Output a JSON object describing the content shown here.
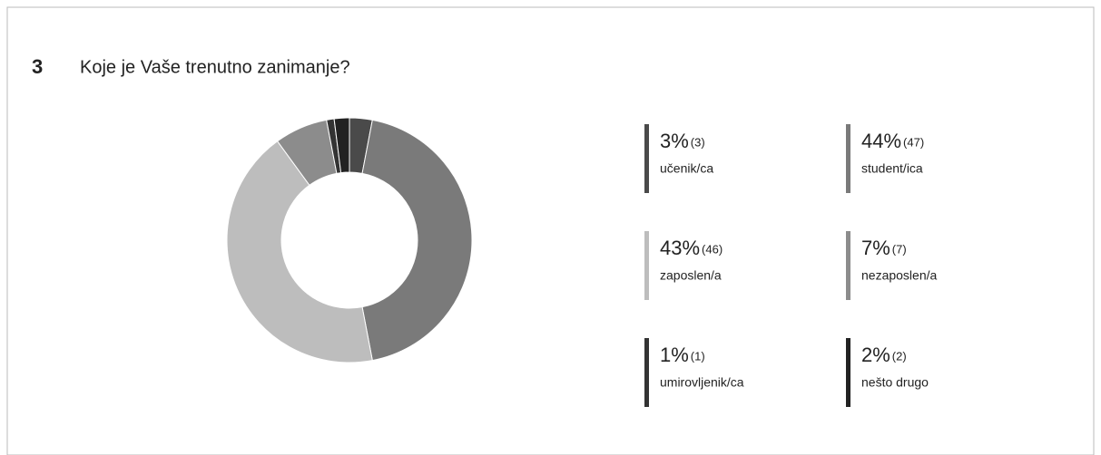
{
  "chart_data": {
    "type": "donut",
    "question_number": "3",
    "title": "Koje je Vaše trenutno zanimanje?",
    "categories": [
      "učenik/ca",
      "student/ica",
      "zaposlen/a",
      "nezaposlen/a",
      "umirovljenik/ca",
      "nešto drugo"
    ],
    "values": [
      3,
      44,
      43,
      7,
      1,
      2
    ],
    "value_labels": [
      "3%",
      "44%",
      "43%",
      "7%",
      "1%",
      "2%"
    ],
    "counts": [
      3,
      47,
      46,
      7,
      1,
      2
    ],
    "count_labels": [
      "(3)",
      "(47)",
      "(46)",
      "(7)",
      "(1)",
      "(2)"
    ],
    "colors": [
      "#4a4a4a",
      "#7a7a7a",
      "#bdbdbd",
      "#8c8c8c",
      "#333333",
      "#222222"
    ]
  }
}
